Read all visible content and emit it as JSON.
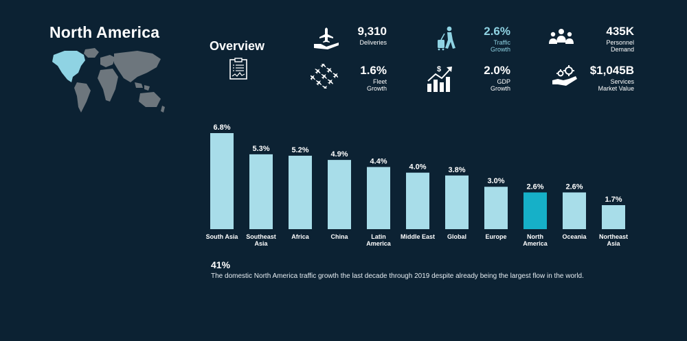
{
  "title": "North America",
  "overview": {
    "title": "Overview"
  },
  "metrics": [
    {
      "value": "9,310",
      "label": "Deliveries",
      "icon": "hand-with-plane-icon"
    },
    {
      "value": "2.6%",
      "label": "Traffic\nGrowth",
      "icon": "traveler-with-luggage-icon"
    },
    {
      "value": "435K",
      "label": "Personnel\nDemand",
      "icon": "people-group-icon"
    },
    {
      "value": "1.6%",
      "label": "Fleet\nGrowth",
      "icon": "airplane-fleet-icon"
    },
    {
      "value": "2.0%",
      "label": "GDP\nGrowth",
      "icon": "gdp-growth-chart-icon"
    },
    {
      "value": "$1,045B",
      "label": "Services\nMarket Value",
      "icon": "hand-with-gears-icon"
    }
  ],
  "chart_data": {
    "type": "bar",
    "categories": [
      "South Asia",
      "Southeast\nAsia",
      "Africa",
      "China",
      "Latin\nAmerica",
      "Middle East",
      "Global",
      "Europe",
      "North\nAmerica",
      "Oceania",
      "Northeast\nAsia"
    ],
    "values": [
      6.8,
      5.3,
      5.2,
      4.9,
      4.4,
      4.0,
      3.8,
      3.0,
      2.6,
      2.6,
      1.7
    ],
    "data_labels": [
      "6.8%",
      "5.3%",
      "5.2%",
      "4.9%",
      "4.4%",
      "4.0%",
      "3.8%",
      "3.0%",
      "2.6%",
      "2.6%",
      "1.7%"
    ],
    "highlight": "North\nAmerica",
    "ylim": [
      0,
      6.8
    ],
    "colors": {
      "bar": "#a8dde9",
      "highlight": "#16b0c8"
    },
    "grid": false
  },
  "footnote": {
    "value": "41%",
    "text": "The domestic North America traffic growth the last decade through 2019 despite already being the largest flow in the world."
  },
  "colors": {
    "background": "#0c2233",
    "accent": "#8fd3e3"
  }
}
